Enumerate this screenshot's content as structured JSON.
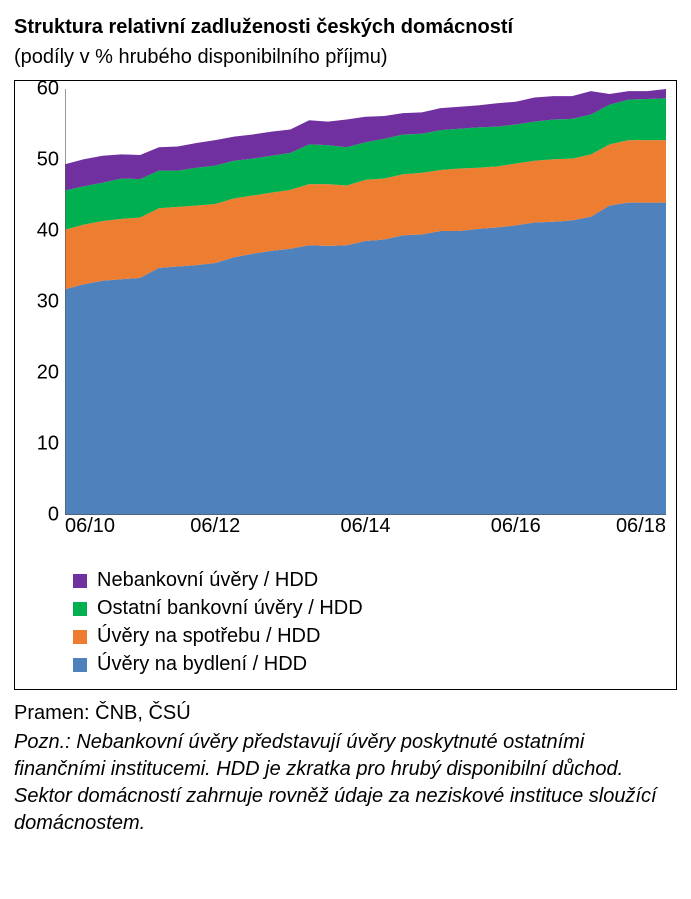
{
  "title": "Struktura relativní zadluženosti českých domácností",
  "subtitle": "(podíly v % hrubého disponibilního příjmu)",
  "source": "Pramen: ČNB, ČSÚ",
  "note": "Pozn.: Nebankovní úvěry představují úvěry poskytnuté ostatními finančními institucemi. HDD je zkratka pro hrubý disponibilní důchod. Sektor domácností zahrnuje rovněž údaje za neziskové instituce sloužící domácnostem.",
  "chart": {
    "type": "area",
    "background_color": "#ffffff",
    "border_color": "#000000",
    "ylim": [
      0,
      60
    ],
    "ytick_step": 10,
    "yticks": [
      0,
      10,
      20,
      30,
      40,
      50,
      60
    ],
    "xmin": 0,
    "xmax": 32,
    "xticks": [
      {
        "pos": 0,
        "label": "06/10"
      },
      {
        "pos": 8,
        "label": "06/12"
      },
      {
        "pos": 16,
        "label": "06/14"
      },
      {
        "pos": 24,
        "label": "06/16"
      },
      {
        "pos": 32,
        "label": "06/18"
      }
    ],
    "label_fontsize": 20,
    "tick_fontsize": 20,
    "series": [
      {
        "name": "Úvěry na bydlení / HDD",
        "color": "#4f81bd",
        "values": [
          31.8,
          32.5,
          33.0,
          33.2,
          33.4,
          34.8,
          35.0,
          35.2,
          35.5,
          36.3,
          36.8,
          37.2,
          37.5,
          38.0,
          37.9,
          38.0,
          38.6,
          38.8,
          39.4,
          39.5,
          40.0,
          40.0,
          40.3,
          40.5,
          40.8,
          41.2,
          41.3,
          41.5,
          42.0,
          43.6,
          44.0,
          44.0,
          44.0
        ]
      },
      {
        "name": "Úvěry na spotřebu / HDD",
        "color": "#ed7d31",
        "values": [
          8.4,
          8.4,
          8.4,
          8.5,
          8.5,
          8.4,
          8.4,
          8.4,
          8.3,
          8.3,
          8.2,
          8.2,
          8.3,
          8.6,
          8.7,
          8.4,
          8.6,
          8.6,
          8.6,
          8.7,
          8.6,
          8.8,
          8.6,
          8.6,
          8.7,
          8.7,
          8.8,
          8.7,
          8.8,
          8.6,
          8.8,
          8.8,
          8.8
        ]
      },
      {
        "name": "Ostatní bankovní úvěry / HDD",
        "color": "#00b050",
        "values": [
          5.5,
          5.4,
          5.4,
          5.7,
          5.4,
          5.3,
          5.1,
          5.3,
          5.4,
          5.3,
          5.2,
          5.2,
          5.2,
          5.6,
          5.5,
          5.4,
          5.3,
          5.6,
          5.6,
          5.5,
          5.6,
          5.6,
          5.7,
          5.6,
          5.5,
          5.5,
          5.6,
          5.6,
          5.6,
          5.6,
          5.7,
          5.8,
          5.9
        ]
      },
      {
        "name": "Nebankovní úvěry / HDD",
        "color": "#7030a0",
        "values": [
          3.7,
          3.8,
          3.8,
          3.4,
          3.4,
          3.3,
          3.4,
          3.5,
          3.6,
          3.4,
          3.4,
          3.4,
          3.3,
          3.4,
          3.3,
          3.9,
          3.6,
          3.2,
          3.0,
          3.0,
          3.1,
          3.1,
          3.1,
          3.3,
          3.2,
          3.4,
          3.3,
          3.2,
          3.3,
          1.5,
          1.2,
          1.1,
          1.3
        ]
      }
    ],
    "legend_order": [
      3,
      2,
      1,
      0
    ]
  }
}
